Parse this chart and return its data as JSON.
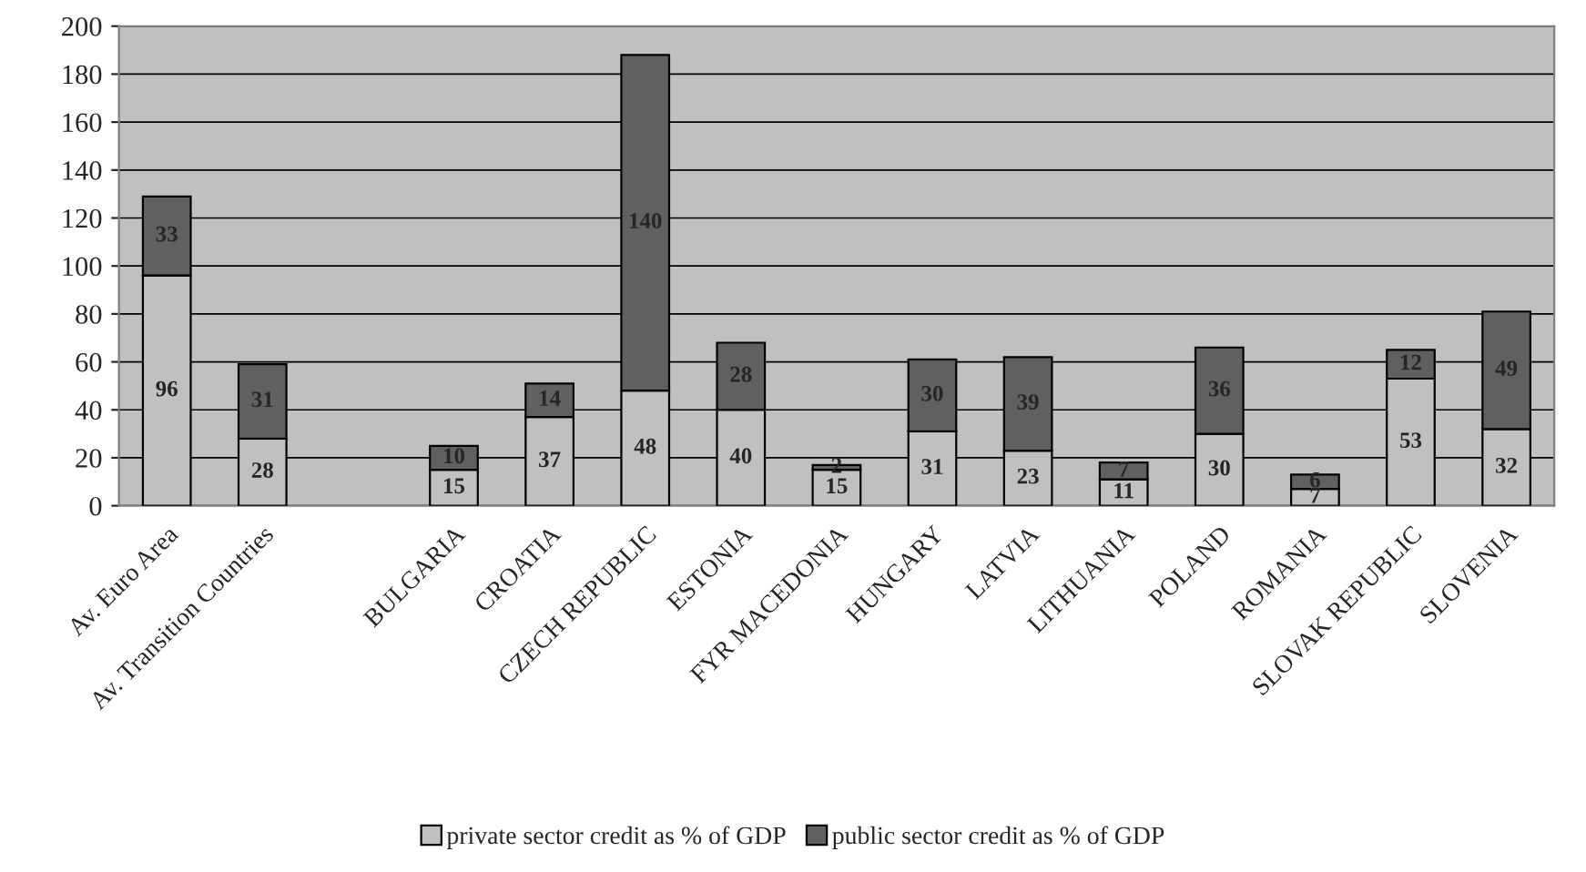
{
  "chart_data": {
    "type": "bar",
    "stacked": true,
    "categories": [
      "Av. Euro Area",
      "Av. Transition Countries",
      null,
      "BULGARIA",
      "CROATIA",
      "CZECH REPUBLIC",
      "ESTONIA",
      "FYR MACEDONIA",
      "HUNGARY",
      "LATVIA",
      "LITHUANIA",
      "POLAND",
      "ROMANIA",
      "SLOVAK REPUBLIC",
      "SLOVENIA"
    ],
    "series": [
      {
        "name": "private sector credit as % of GDP",
        "color": "#c0c0c0",
        "values": [
          96,
          28,
          null,
          15,
          37,
          48,
          40,
          15,
          31,
          23,
          11,
          30,
          7,
          53,
          32
        ]
      },
      {
        "name": "public sector credit as % of GDP",
        "color": "#606060",
        "values": [
          33,
          31,
          null,
          10,
          14,
          140,
          28,
          2,
          30,
          39,
          7,
          36,
          6,
          12,
          49
        ]
      }
    ],
    "ylim": [
      0,
      200
    ],
    "yticks": [
      0,
      20,
      40,
      60,
      80,
      100,
      120,
      140,
      160,
      180,
      200
    ],
    "grid": "y",
    "legend": "bottom",
    "data_labels": true
  }
}
